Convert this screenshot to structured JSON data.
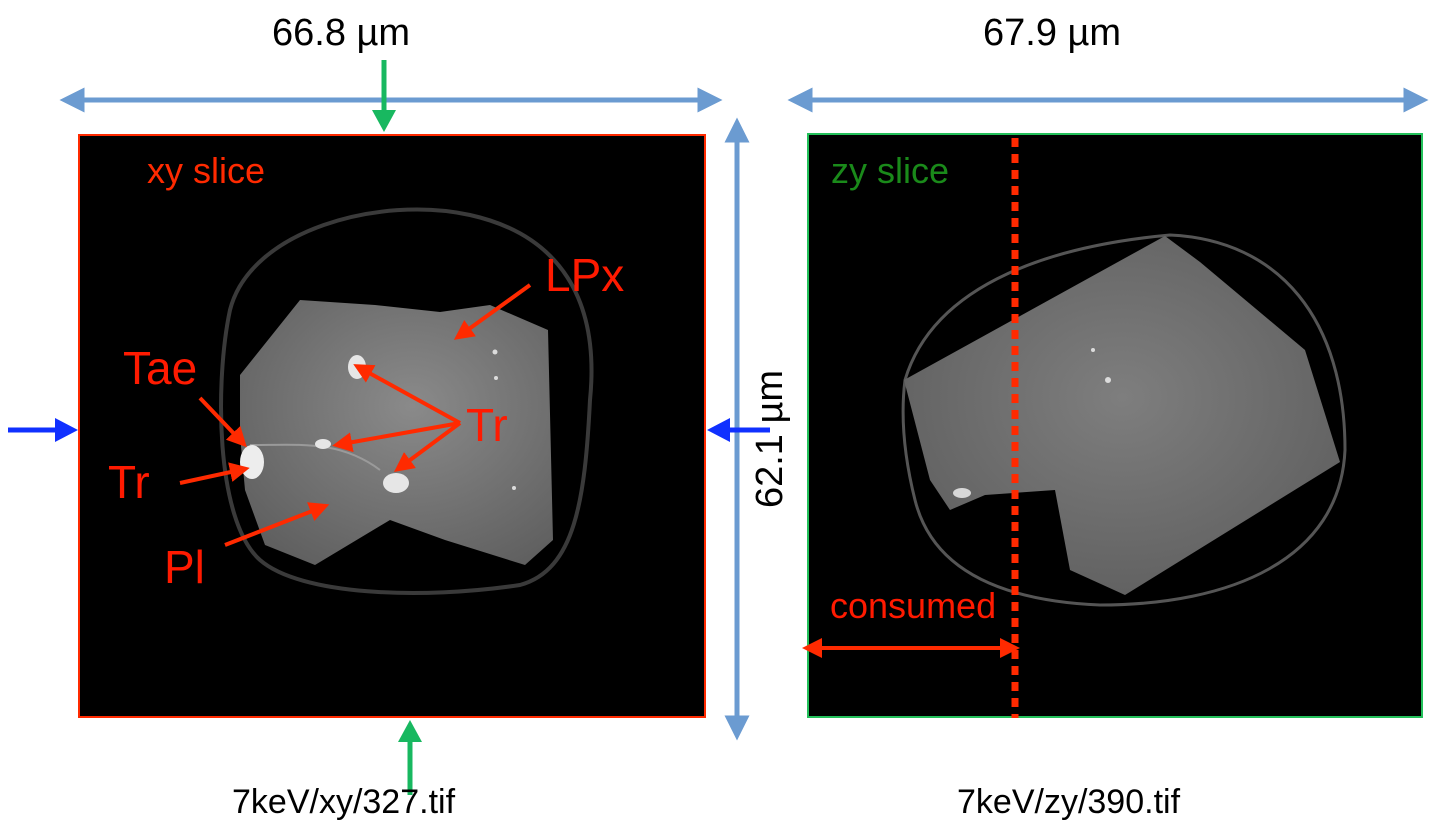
{
  "left_panel": {
    "width_label": "66.8 µm",
    "height_label": "62.1 µm",
    "slice_label": "xy slice",
    "file_label": "7keV/xy/327.tif",
    "border_color": "#ff2a00",
    "minerals": {
      "lpx": "LPx",
      "tae": "Tae",
      "tr_left": "Tr",
      "tr_right": "Tr",
      "pl": "Pl"
    }
  },
  "right_panel": {
    "width_label": "67.9 µm",
    "slice_label": "zy slice",
    "file_label": "7keV/zy/390.tif",
    "consumed_label": "consumed",
    "border_color": "#23c05a"
  },
  "colors": {
    "dimension_arrow": "#6b9bd1",
    "annotation": "#ff1a00",
    "marker_blue": "#1030ff",
    "marker_green": "#18b860",
    "slice_label_green": "#1a8a1a"
  }
}
